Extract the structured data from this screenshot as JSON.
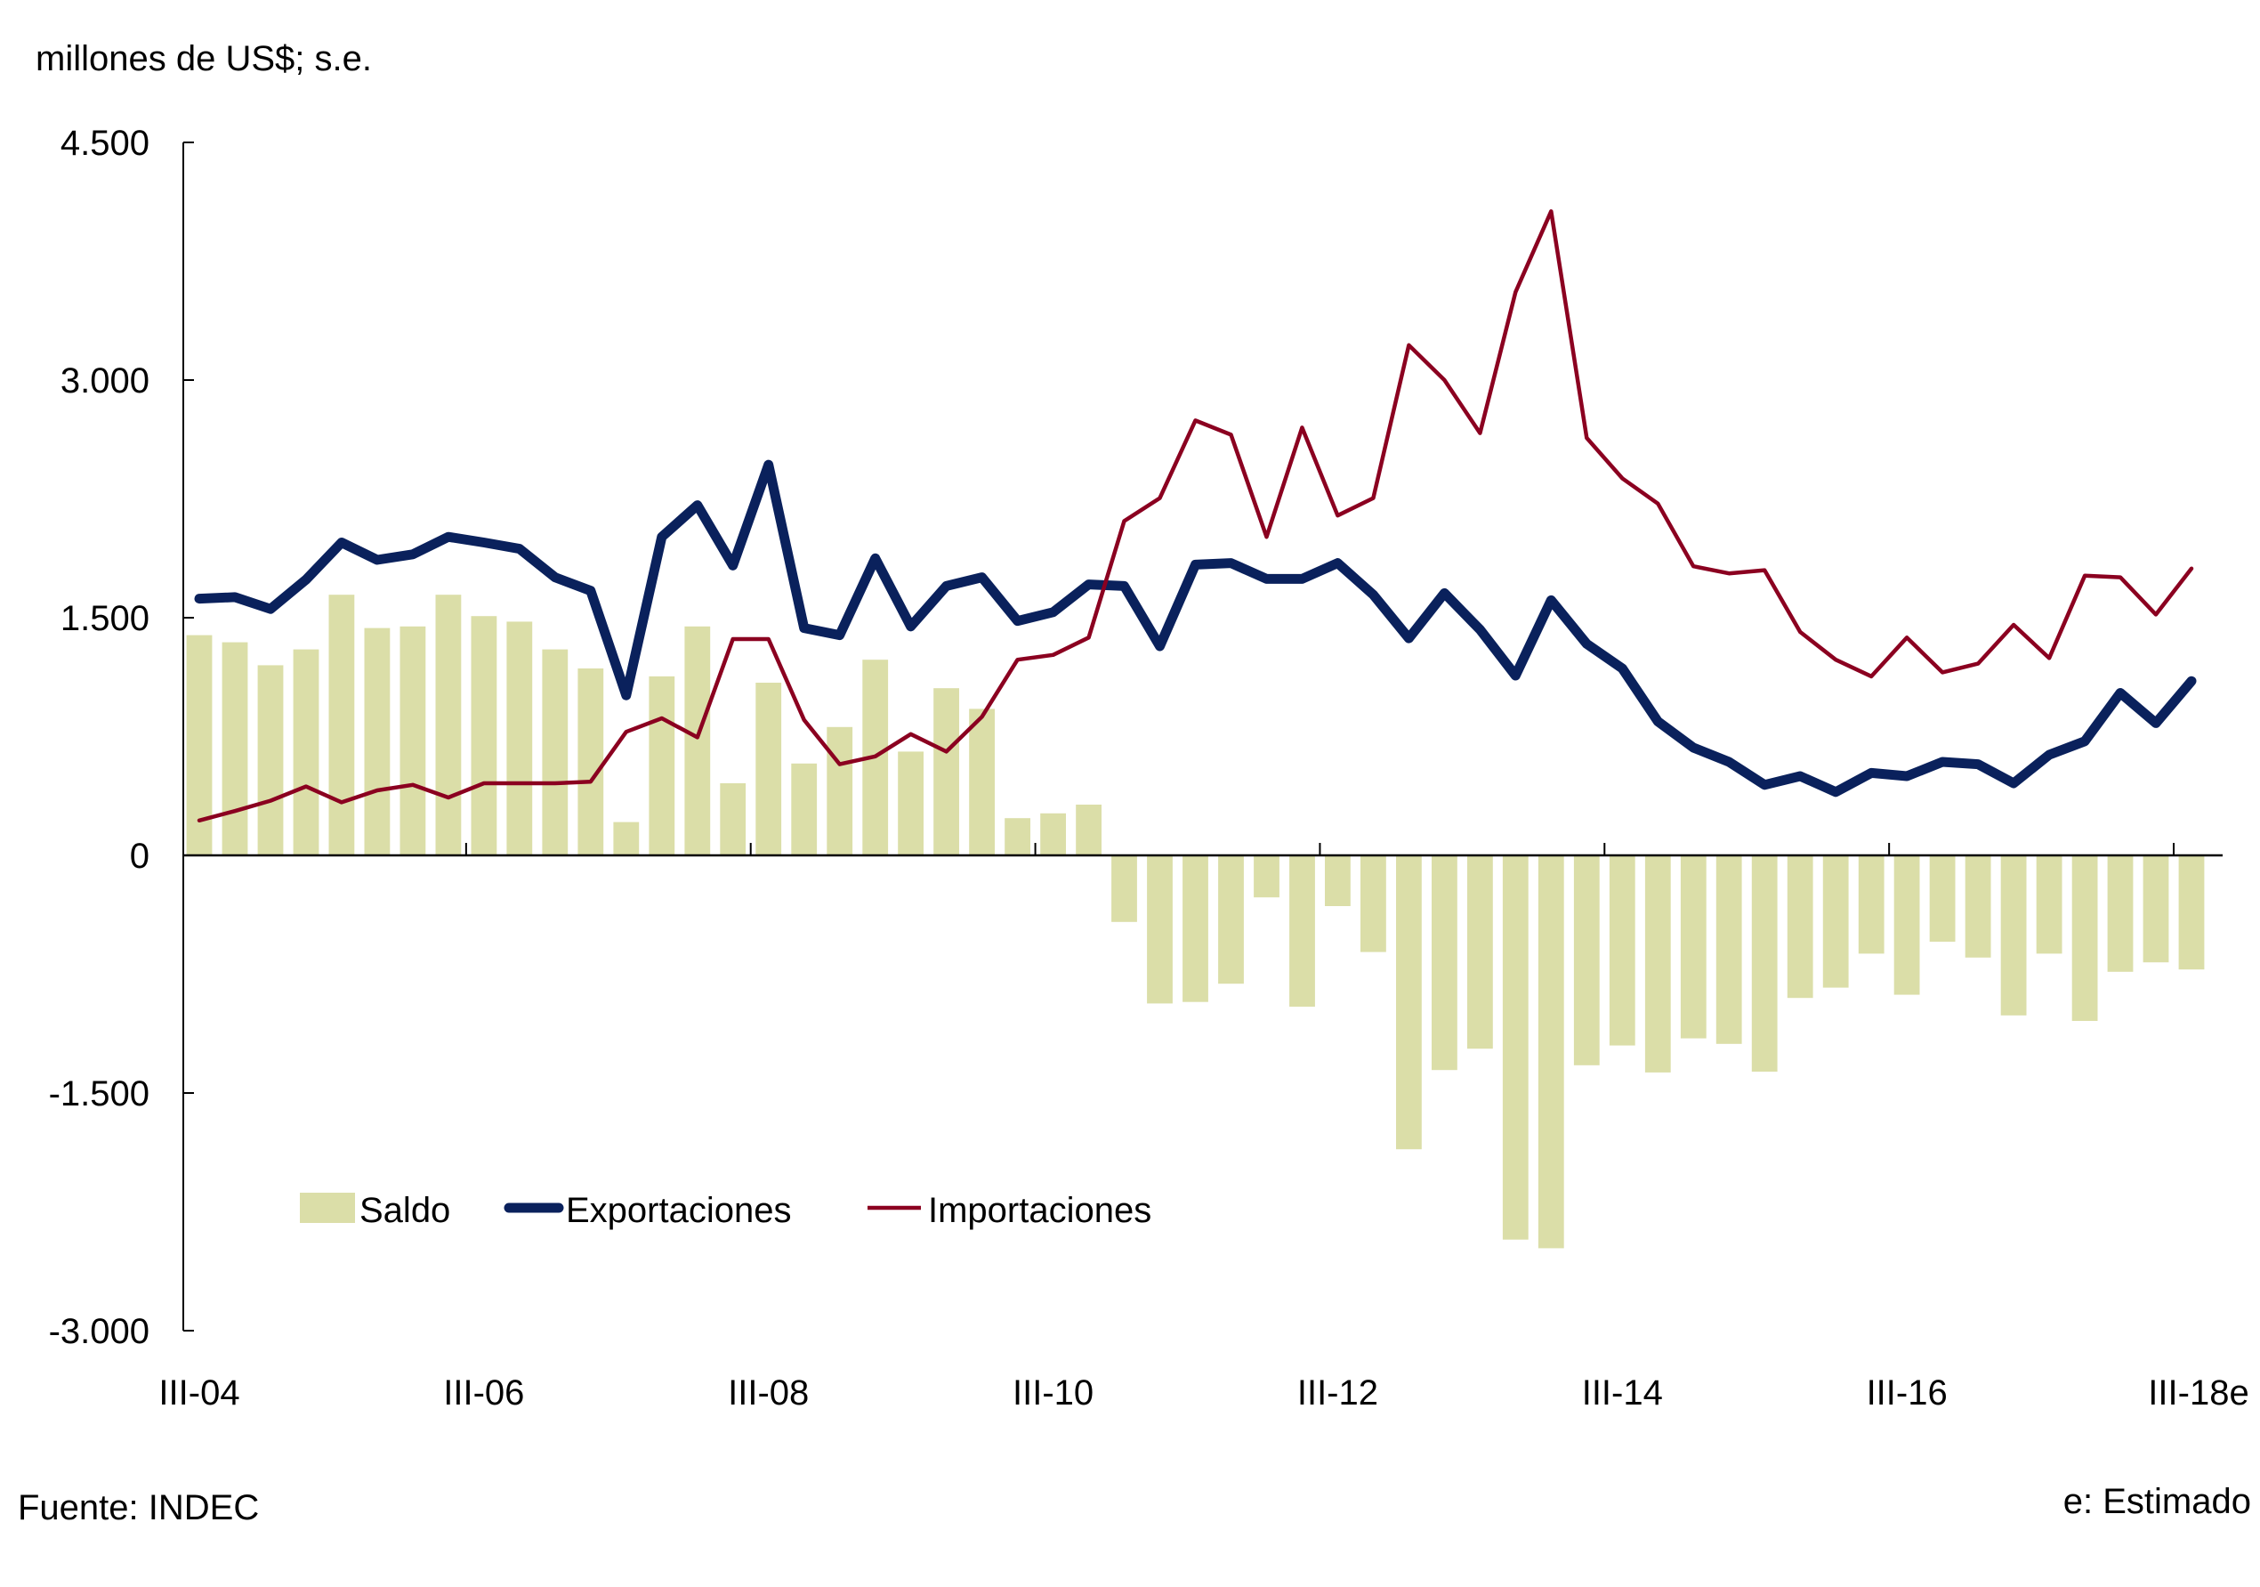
{
  "chart_data": {
    "type": "bar",
    "title": "",
    "ylabel": "millones de US$; s.e.",
    "xlabel": "",
    "ylim": [
      -3000,
      4500
    ],
    "yticks": [
      -3000,
      -1500,
      0,
      1500,
      3000,
      4500
    ],
    "ytick_labels": [
      "-3.000",
      "-1.500",
      "0",
      "1.500",
      "3.000",
      "4.500"
    ],
    "xtick_labels": [
      "III-04",
      "III-06",
      "III-08",
      "III-10",
      "III-12",
      "III-14",
      "III-16",
      "III-18e"
    ],
    "xtick_every": 8,
    "grid": false,
    "legend_position": "bottom-left",
    "categories": [
      "III-04",
      "IV-04",
      "I-05",
      "II-05",
      "III-05",
      "IV-05",
      "I-06",
      "II-06",
      "III-06",
      "IV-06",
      "I-07",
      "II-07",
      "III-07",
      "IV-07",
      "I-08",
      "II-08",
      "III-08",
      "IV-08",
      "I-09",
      "II-09",
      "III-09",
      "IV-09",
      "I-10",
      "II-10",
      "III-10",
      "IV-10",
      "I-11",
      "II-11",
      "III-11",
      "IV-11",
      "I-12",
      "II-12",
      "III-12",
      "IV-12",
      "I-13",
      "II-13",
      "III-13",
      "IV-13",
      "I-14",
      "II-14",
      "III-14",
      "IV-14",
      "I-15",
      "II-15",
      "III-15",
      "IV-15",
      "I-16",
      "II-16",
      "III-16",
      "IV-16",
      "I-17",
      "II-17",
      "III-17",
      "IV-17",
      "I-18",
      "II-18",
      "III-18e"
    ],
    "series": [
      {
        "name": "Saldo",
        "kind": "bar",
        "color": "#DBDEA8",
        "values": [
          1390,
          1345,
          1200,
          1300,
          1645,
          1435,
          1445,
          1645,
          1510,
          1475,
          1300,
          1180,
          210,
          1130,
          1445,
          455,
          1090,
          580,
          810,
          1235,
          655,
          1055,
          925,
          235,
          265,
          320,
          -420,
          -935,
          -925,
          -810,
          -265,
          -955,
          -320,
          -610,
          -1855,
          -1355,
          -1220,
          -2425,
          -2480,
          -1325,
          -1200,
          -1370,
          -1155,
          -1190,
          -1365,
          -900,
          -835,
          -620,
          -880,
          -545,
          -645,
          -1010,
          -620,
          -1045,
          -735,
          -675,
          -720
        ]
      },
      {
        "name": "Exportaciones",
        "kind": "line",
        "color": "#0A215C",
        "values": [
          1620,
          1630,
          1555,
          1740,
          1975,
          1865,
          1900,
          2010,
          1975,
          1935,
          1755,
          1670,
          1010,
          2010,
          2210,
          1830,
          2465,
          1435,
          1390,
          1875,
          1445,
          1700,
          1755,
          1480,
          1535,
          1710,
          1700,
          1320,
          1835,
          1845,
          1745,
          1745,
          1845,
          1645,
          1370,
          1655,
          1425,
          1135,
          1610,
          1335,
          1180,
          845,
          680,
          590,
          445,
          500,
          400,
          520,
          500,
          590,
          575,
          455,
          635,
          720,
          1025,
          835,
          1100
        ]
      },
      {
        "name": "Importaciones",
        "kind": "line",
        "color": "#8B0020",
        "values": [
          220,
          280,
          345,
          435,
          335,
          410,
          445,
          365,
          455,
          455,
          455,
          465,
          780,
          865,
          745,
          1365,
          1365,
          855,
          575,
          625,
          765,
          655,
          875,
          1235,
          1265,
          1375,
          2110,
          2255,
          2745,
          2655,
          2010,
          2700,
          2145,
          2255,
          3220,
          3000,
          2665,
          3555,
          4065,
          2635,
          2380,
          2220,
          1825,
          1780,
          1800,
          1410,
          1235,
          1130,
          1375,
          1155,
          1210,
          1455,
          1245,
          1765,
          1755,
          1520,
          1810
        ]
      }
    ]
  },
  "labels": {
    "unit": "millones de US$; s.e.",
    "source": "Fuente: INDEC",
    "note": "e: Estimado"
  },
  "legend": [
    {
      "label": "Saldo",
      "symbol": "box",
      "color": "#DBDEA8"
    },
    {
      "label": "Exportaciones",
      "symbol": "thick-line",
      "color": "#0A215C"
    },
    {
      "label": "Importaciones",
      "symbol": "thin-line",
      "color": "#8B0020"
    }
  ]
}
